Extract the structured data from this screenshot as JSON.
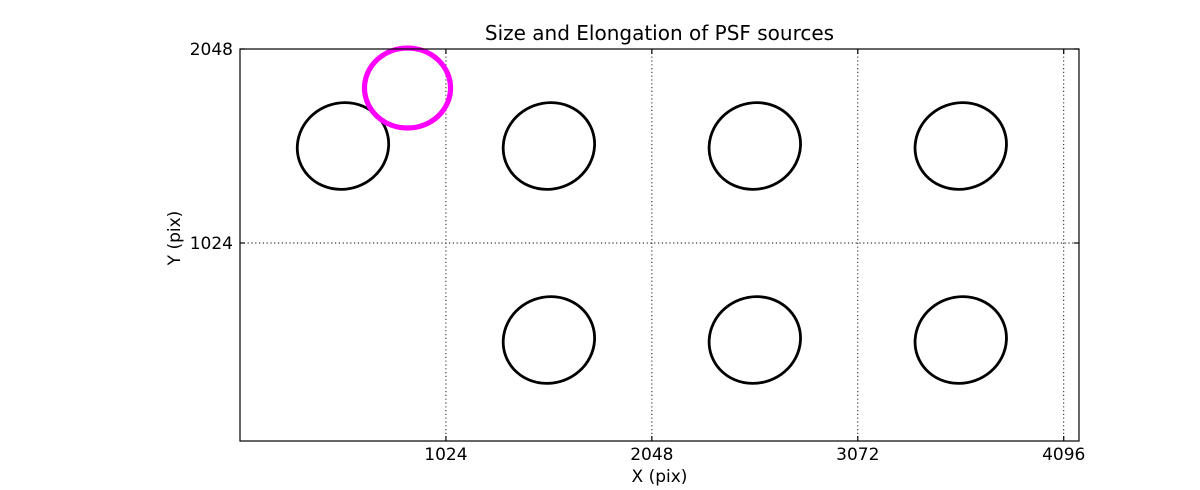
{
  "figure": {
    "background": "#ffffff",
    "frame_color": "#000000"
  },
  "chart_data": {
    "type": "scatter",
    "title": "Size and Elongation of PSF sources",
    "xlabel": "X (pix)",
    "ylabel": "Y (pix)",
    "xlim": [
      0,
      4172
    ],
    "ylim": [
      -21,
      2048
    ],
    "xticks": [
      1024,
      2048,
      3072,
      4096
    ],
    "xtick_labels": [
      "1024",
      "2048",
      "3072",
      "4096"
    ],
    "yticks": [
      1024,
      2048
    ],
    "ytick_labels": [
      "1024",
      "2048"
    ],
    "grid": {
      "on": true,
      "style": "dotted",
      "color": "#000000"
    },
    "legend": "none",
    "marker": "ellipse outline showing PSF size and elongation",
    "series": [
      {
        "name": "psf_ellipses_black",
        "color": "#000000",
        "linewidth": 2.8,
        "points": [
          {
            "x": 512,
            "y": 1536,
            "a": 229,
            "b": 227,
            "angle": 20
          },
          {
            "x": 1536,
            "y": 1536,
            "a": 229,
            "b": 227,
            "angle": 20
          },
          {
            "x": 2560,
            "y": 1536,
            "a": 229,
            "b": 227,
            "angle": 20
          },
          {
            "x": 3584,
            "y": 1536,
            "a": 229,
            "b": 227,
            "angle": 20
          },
          {
            "x": 1536,
            "y": 512,
            "a": 229,
            "b": 227,
            "angle": 20
          },
          {
            "x": 2560,
            "y": 512,
            "a": 229,
            "b": 227,
            "angle": 20
          },
          {
            "x": 3584,
            "y": 512,
            "a": 229,
            "b": 227,
            "angle": 20
          }
        ]
      },
      {
        "name": "psf_ellipse_magenta",
        "color": "#FF00FF",
        "linewidth": 5.2,
        "points": [
          {
            "x": 833,
            "y": 1842,
            "a": 214,
            "b": 211,
            "angle": 0
          }
        ]
      }
    ]
  }
}
